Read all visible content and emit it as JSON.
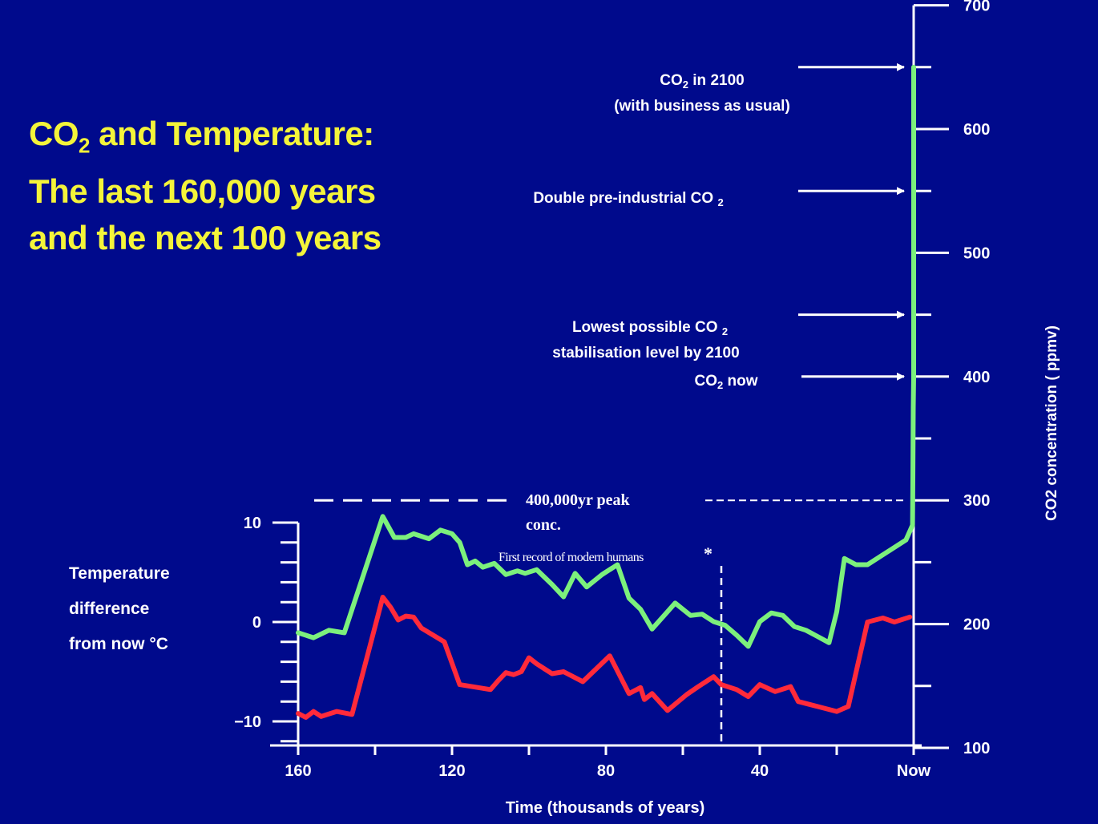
{
  "title": {
    "line1_prefix": "CO",
    "line1_sub": "2",
    "line1_suffix": " and Temperature:",
    "line2": "The last 160,000 years",
    "line3": "and the next 100 years"
  },
  "temperature_axis_label": {
    "line1": "Temperature",
    "line2": "difference",
    "line3": "from now °C"
  },
  "annotations": {
    "co2_2100_line1_prefix": "CO",
    "co2_2100_line1_sub": "2",
    "co2_2100_line1_suffix": " in 2100",
    "co2_2100_line2": "(with business as usual)",
    "double_prefix": "Double pre-industrial CO ",
    "double_sub": "2",
    "lowest_line1_prefix": "Lowest possible CO ",
    "lowest_line1_sub": "2",
    "lowest_line2": "stabilisation level by 2100",
    "co2_now_prefix": "CO",
    "co2_now_sub": "2",
    "co2_now_suffix": " now",
    "peak_line1": "400,000yr peak",
    "peak_line2": "conc.",
    "humans": "First record of modern humans",
    "asterisk": "*"
  },
  "colors": {
    "background": "#000a8c",
    "title": "#f4f43a",
    "co2_line": "#7cf07c",
    "temperature_line": "#ff2a3a",
    "axis": "#ffffff"
  },
  "chart_data": {
    "type": "line",
    "title": "CO2 and Temperature: The last 160,000 years and the next 100 years",
    "xlabel": "Time (thousands of years)",
    "x_ticks": [
      "160",
      "120",
      "80",
      "40",
      "Now"
    ],
    "xlim": [
      160,
      0
    ],
    "y_left": {
      "label": "Temperature difference from now °C",
      "ticks": [
        "10",
        "0",
        "−10"
      ],
      "ylim": [
        -12,
        10
      ]
    },
    "y_right": {
      "label": "CO2 concentration ( ppmv)",
      "ticks": [
        "700",
        "600",
        "500",
        "400",
        "300",
        "200",
        "100"
      ],
      "ylim": [
        100,
        700
      ]
    },
    "series": [
      {
        "name": "CO2",
        "axis": "right",
        "color": "#7cf07c",
        "points": [
          [
            160,
            193
          ],
          [
            156,
            189
          ],
          [
            152,
            195
          ],
          [
            148,
            193
          ],
          [
            138,
            287
          ],
          [
            135,
            270
          ],
          [
            132,
            270
          ],
          [
            130,
            273
          ],
          [
            126,
            269
          ],
          [
            123,
            276
          ],
          [
            120,
            273
          ],
          [
            118,
            266
          ],
          [
            116,
            248
          ],
          [
            114,
            251
          ],
          [
            112,
            246
          ],
          [
            109,
            249
          ],
          [
            106,
            240
          ],
          [
            103,
            243
          ],
          [
            101,
            241
          ],
          [
            98,
            244
          ],
          [
            94,
            232
          ],
          [
            91,
            222
          ],
          [
            88,
            241
          ],
          [
            85,
            230
          ],
          [
            81,
            240
          ],
          [
            77,
            248
          ],
          [
            74,
            221
          ],
          [
            71,
            212
          ],
          [
            68,
            196
          ],
          [
            62,
            217
          ],
          [
            58,
            207
          ],
          [
            55,
            208
          ],
          [
            52,
            202
          ],
          [
            49,
            199
          ],
          [
            46,
            191
          ],
          [
            43,
            182
          ],
          [
            40,
            202
          ],
          [
            37,
            209
          ],
          [
            34,
            207
          ],
          [
            31,
            198
          ],
          [
            28,
            195
          ],
          [
            25,
            190
          ],
          [
            22,
            185
          ],
          [
            20,
            210
          ],
          [
            18,
            253
          ],
          [
            15,
            248
          ],
          [
            12,
            248
          ],
          [
            8,
            256
          ],
          [
            6,
            260
          ],
          [
            2,
            268
          ],
          [
            0.3,
            280
          ],
          [
            0.2,
            316
          ],
          [
            0.1,
            375
          ],
          [
            0,
            400
          ],
          [
            0,
            650
          ]
        ]
      },
      {
        "name": "Temperature",
        "axis": "left",
        "color": "#ff2a3a",
        "points": [
          [
            160,
            -9.2
          ],
          [
            158,
            -9.6
          ],
          [
            156,
            -9.0
          ],
          [
            154,
            -9.5
          ],
          [
            150,
            -9.0
          ],
          [
            146,
            -9.3
          ],
          [
            138,
            2.5
          ],
          [
            136,
            1.5
          ],
          [
            134,
            0.2
          ],
          [
            132,
            0.6
          ],
          [
            130,
            0.5
          ],
          [
            128,
            -0.6
          ],
          [
            122,
            -2.0
          ],
          [
            118,
            -6.3
          ],
          [
            110,
            -6.8
          ],
          [
            108,
            -5.9
          ],
          [
            106,
            -5.1
          ],
          [
            104,
            -5.3
          ],
          [
            102,
            -5.0
          ],
          [
            100,
            -3.6
          ],
          [
            98,
            -4.2
          ],
          [
            96,
            -4.7
          ],
          [
            94,
            -5.2
          ],
          [
            91,
            -5.0
          ],
          [
            86,
            -6.0
          ],
          [
            79,
            -3.4
          ],
          [
            74,
            -7.2
          ],
          [
            71,
            -6.6
          ],
          [
            70,
            -7.8
          ],
          [
            68,
            -7.2
          ],
          [
            64,
            -8.9
          ],
          [
            59,
            -7.3
          ],
          [
            56,
            -6.5
          ],
          [
            52,
            -5.5
          ],
          [
            50,
            -6.3
          ],
          [
            46,
            -6.8
          ],
          [
            43,
            -7.5
          ],
          [
            40,
            -6.3
          ],
          [
            36,
            -7.0
          ],
          [
            32,
            -6.5
          ],
          [
            30,
            -8.0
          ],
          [
            25,
            -8.5
          ],
          [
            22,
            -8.8
          ],
          [
            20,
            -9.0
          ],
          [
            17,
            -8.5
          ],
          [
            12,
            0.0
          ],
          [
            8,
            0.4
          ],
          [
            5,
            0.0
          ],
          [
            1,
            0.5
          ]
        ]
      }
    ],
    "reference_lines": [
      {
        "label": "400,000yr peak conc.",
        "axis": "right",
        "value": 300
      }
    ],
    "annotations": [
      {
        "text": "CO2 in 2100 (with business as usual)",
        "axis": "right",
        "value": 650
      },
      {
        "text": "Double pre-industrial CO2",
        "axis": "right",
        "value": 550
      },
      {
        "text": "Lowest possible CO2 stabilisation level by 2100",
        "axis": "right",
        "value": 450
      },
      {
        "text": "CO2 now",
        "axis": "right",
        "value": 400
      },
      {
        "text": "First record of modern humans",
        "x": 50
      }
    ]
  }
}
